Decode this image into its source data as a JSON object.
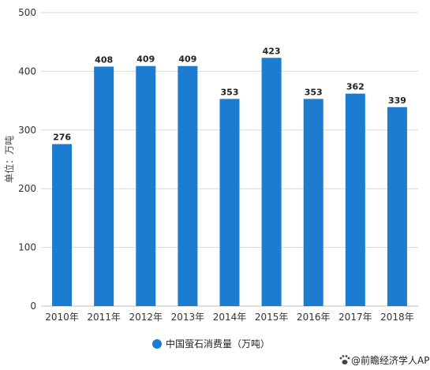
{
  "chart_data": {
    "type": "bar",
    "categories": [
      "2010年",
      "2011年",
      "2012年",
      "2013年",
      "2014年",
      "2015年",
      "2016年",
      "2017年",
      "2018年"
    ],
    "series": [
      {
        "name": "中国萤石消费量（万吨）",
        "values": [
          276,
          408,
          409,
          409,
          353,
          423,
          353,
          362,
          339
        ]
      }
    ],
    "ylabel": "单位：万吨",
    "ylim": [
      0,
      500
    ],
    "yticks": [
      0,
      100,
      200,
      300,
      400,
      500
    ],
    "grid": true,
    "legend": "bottom-center",
    "bar_color": "#1c7cd0"
  },
  "credit": "@前瞻经济学人APP",
  "credit_icon": "paw-icon"
}
